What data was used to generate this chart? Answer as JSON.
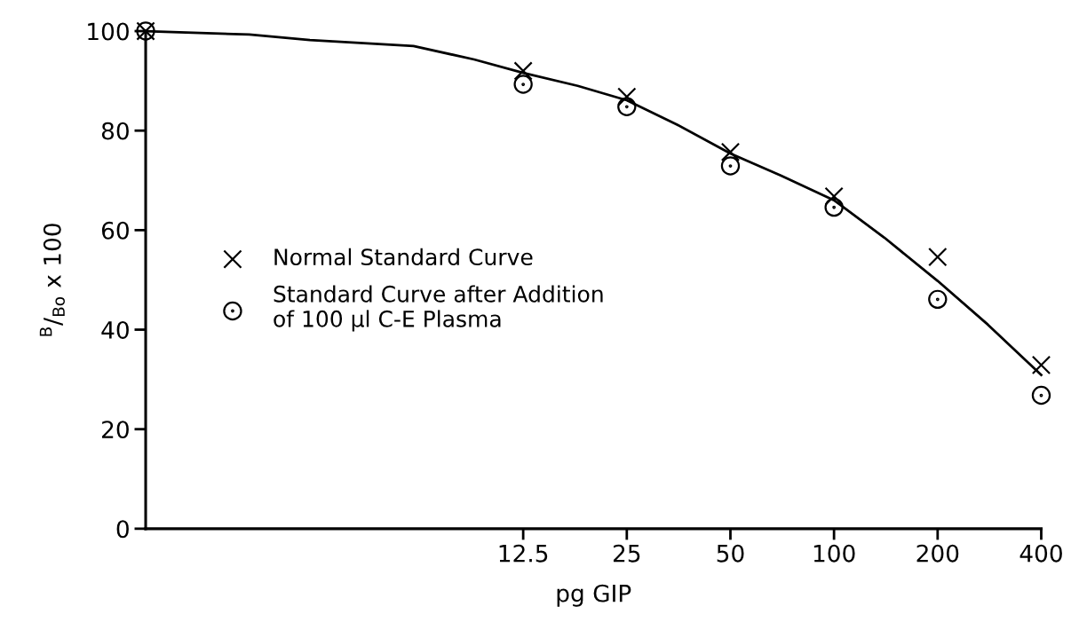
{
  "chart_data": {
    "type": "scatter",
    "xlabel": "pg GIP",
    "ylabel": "$^{B}$/$_{Bo}$ x 100",
    "log": "x",
    "x": [
      1,
      12.5,
      25,
      50,
      100,
      200,
      400
    ],
    "series": [
      {
        "name": "Normal Standard Curve",
        "color": "#000000",
        "marker": "cross",
        "values": [
          100,
          92.0,
          86.8,
          75.7,
          66.8,
          54.6,
          32.9
        ]
      },
      {
        "name": "Standard Curve after Addition\nof 100 µl C-E Plasma",
        "color": "#000000",
        "marker": "circle",
        "values": [
          100,
          89.3,
          84.8,
          72.9,
          64.6,
          46.1,
          26.8
        ]
      },
      {
        "type": "line",
        "color": "#000000",
        "marker": "none",
        "line_style": "solid",
        "x": [
          1,
          2,
          3,
          6,
          9,
          12.5,
          18,
          25,
          35,
          50,
          70,
          100,
          140,
          200,
          280,
          400
        ],
        "values": [
          100,
          99.3,
          98.2,
          97,
          94.3,
          91.6,
          89,
          86.1,
          81.2,
          75.4,
          71,
          66,
          58.5,
          49.8,
          41,
          30.9
        ]
      }
    ],
    "xlim": [
      1,
      400
    ],
    "xticks": [
      12.5,
      25,
      50,
      100,
      200,
      400
    ],
    "ylim": [
      0,
      100
    ],
    "yticks": [
      0,
      20,
      40,
      60,
      80,
      100
    ],
    "grid": false,
    "legend": "center left"
  }
}
